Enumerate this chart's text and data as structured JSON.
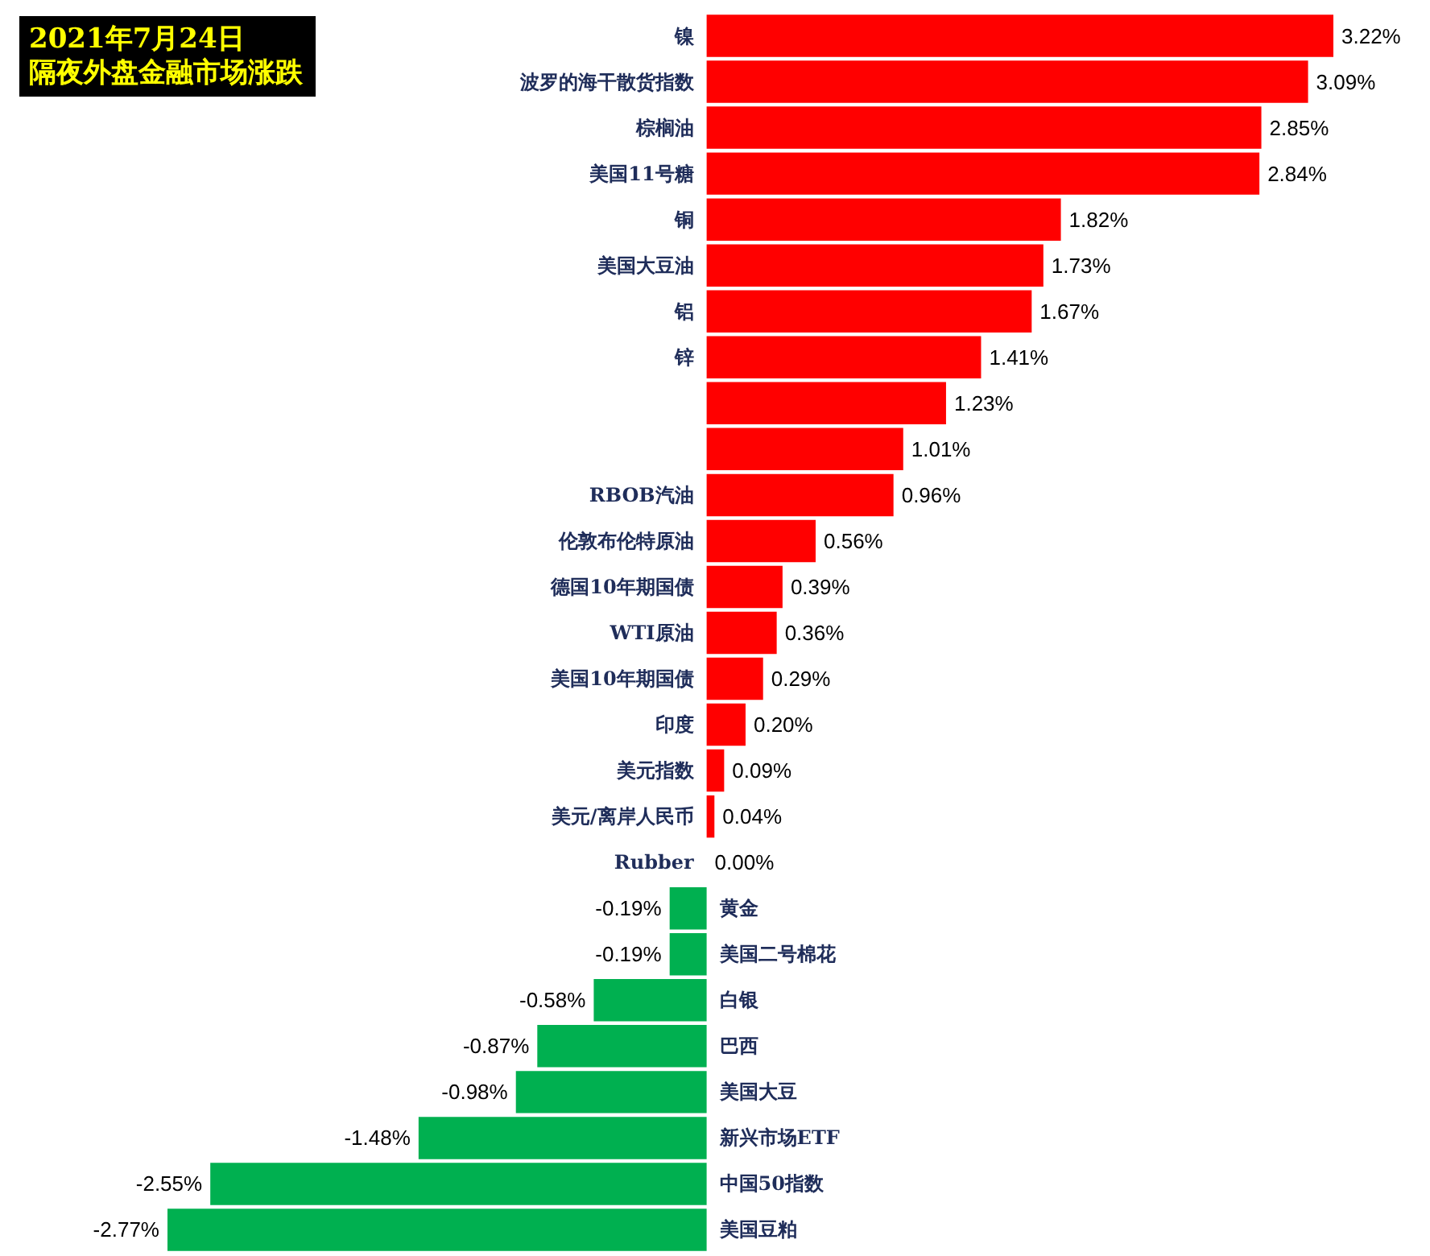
{
  "chart_data": {
    "type": "bar",
    "orientation": "horizontal",
    "title": "2021年7月24日",
    "subtitle": "隔夜外盘金融市场涨跌",
    "categories": [
      "镍",
      "波罗的海干散货指数",
      "棕榈油",
      "美国11号糖",
      "铜",
      "美国大豆油",
      "铝",
      "锌",
      null,
      null,
      "RBOB汽油",
      "伦敦布伦特原油",
      "德国10年期国债",
      "WTI原油",
      "美国10年期国债",
      "印度",
      "美元指数",
      "美元/离岸人民币",
      "Rubber",
      "黄金",
      "美国二号棉花",
      "白银",
      "巴西",
      "美国大豆",
      "新兴市场ETF",
      "中国50指数",
      "美国豆粕"
    ],
    "values": [
      3.22,
      3.09,
      2.85,
      2.84,
      1.82,
      1.73,
      1.67,
      1.41,
      1.23,
      1.01,
      0.96,
      0.56,
      0.39,
      0.36,
      0.29,
      0.2,
      0.09,
      0.04,
      0.0,
      -0.19,
      -0.19,
      -0.58,
      -0.87,
      -0.98,
      -1.48,
      -2.55,
      -2.77
    ],
    "value_labels": [
      "3.22%",
      "3.09%",
      "2.85%",
      "2.84%",
      "1.82%",
      "1.73%",
      "1.67%",
      "1.41%",
      "1.23%",
      "1.01%",
      "0.96%",
      "0.56%",
      "0.39%",
      "0.36%",
      "0.29%",
      "0.20%",
      "0.09%",
      "0.04%",
      "0.00%",
      "-0.19%",
      "-0.19%",
      "-0.58%",
      "-0.87%",
      "-0.98%",
      "-1.48%",
      "-2.55%",
      "-2.77%"
    ],
    "colors": [
      "#ff0000",
      "#ff0000",
      "#ff0000",
      "#ff0000",
      "#ff0000",
      "#ff0000",
      "#ff0000",
      "#ff0000",
      "#ff0000",
      "#ff0000",
      "#ff0000",
      "#ff0000",
      "#ff0000",
      "#ff0000",
      "#ff0000",
      "#ff0000",
      "#ff0000",
      "#ff0000",
      "#ff0000",
      "#00b050",
      "#00b050",
      "#00b050",
      "#00b050",
      "#00b050",
      "#00b050",
      "#00b050",
      "#00b050"
    ]
  }
}
